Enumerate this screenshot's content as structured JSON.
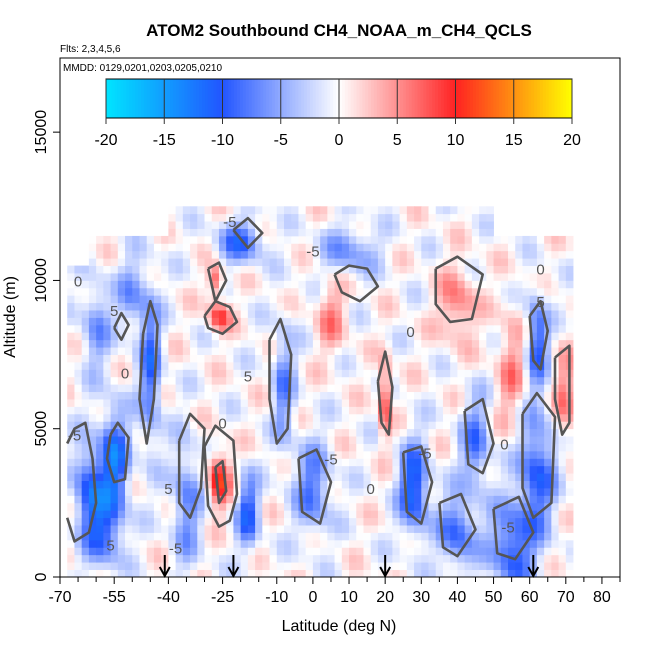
{
  "chart_data": {
    "type": "heatmap",
    "title": "ATOM2 Southbound CH4_NOAA_m_CH4_QCLS",
    "subtitle_flights": "Flts: 2,3,4,5,6",
    "subtitle_dates": "MMDD: 0129,0201,0203,0205,0210",
    "xlabel": "Latitude (deg N)",
    "ylabel": "Altitude (m)",
    "xlim": [
      -70,
      85
    ],
    "ylim": [
      0,
      17500
    ],
    "x_ticks_major": [
      -70,
      -55,
      -40,
      -25,
      -10,
      0,
      10,
      20,
      30,
      40,
      50,
      60,
      70,
      80
    ],
    "x_tick_labels": [
      "-70",
      "-55",
      "-40",
      "-25",
      "-10",
      "0",
      "10",
      "20",
      "30",
      "40",
      "50",
      "60",
      "70",
      "80"
    ],
    "x_ticks_minor": [
      -65,
      -60,
      -50,
      -45,
      -35,
      -30,
      -20,
      -15,
      -5,
      5,
      15,
      25,
      35,
      45,
      55,
      65,
      75,
      85
    ],
    "y_ticks": [
      0,
      5000,
      10000,
      15000
    ],
    "y_tick_labels": [
      "0",
      "5000",
      "10000",
      "15000"
    ],
    "colorbar": {
      "range": [
        -20,
        20
      ],
      "ticks": [
        -20,
        -15,
        -10,
        -5,
        0,
        5,
        10,
        15,
        20
      ],
      "tick_labels": [
        "-20",
        "-15",
        "-10",
        "-5",
        "0",
        "5",
        "10",
        "15",
        "20"
      ],
      "colors": [
        "#00e5ff",
        "#2255ff",
        "#ffffff",
        "#ff2222",
        "#ffff00"
      ]
    },
    "data_extent": {
      "lat": [
        -68,
        72
      ],
      "alt": [
        0,
        12500
      ]
    },
    "cell_size": {
      "lat": 2,
      "alt": 250
    },
    "anomalies": [
      {
        "lat": -62,
        "alt": 3000,
        "amp": -10,
        "wlat": 4,
        "walt": 1500
      },
      {
        "lat": -55,
        "alt": 3800,
        "amp": -12,
        "wlat": 4,
        "walt": 1800
      },
      {
        "lat": -58,
        "alt": 1500,
        "amp": -8,
        "wlat": 5,
        "walt": 1200
      },
      {
        "lat": -45,
        "alt": 7000,
        "amp": -9,
        "wlat": 3,
        "walt": 2500
      },
      {
        "lat": -50,
        "alt": 9500,
        "amp": -6,
        "wlat": 4,
        "walt": 1200
      },
      {
        "lat": -60,
        "alt": 8500,
        "amp": -6,
        "wlat": 4,
        "walt": 1500
      },
      {
        "lat": -35,
        "alt": 2500,
        "amp": -7,
        "wlat": 4,
        "walt": 2000
      },
      {
        "lat": -26,
        "alt": 3300,
        "amp": 11,
        "wlat": 3,
        "walt": 900
      },
      {
        "lat": -26,
        "alt": 8800,
        "amp": 9,
        "wlat": 3,
        "walt": 500
      },
      {
        "lat": -27,
        "alt": 10000,
        "amp": 8,
        "wlat": 2,
        "walt": 500
      },
      {
        "lat": -18,
        "alt": 2200,
        "amp": -10,
        "wlat": 3,
        "walt": 1200
      },
      {
        "lat": -20,
        "alt": 11300,
        "amp": -9,
        "wlat": 6,
        "walt": 700
      },
      {
        "lat": -8,
        "alt": 6500,
        "amp": -7,
        "wlat": 3,
        "walt": 2000
      },
      {
        "lat": 0,
        "alt": 3000,
        "amp": -8,
        "wlat": 5,
        "walt": 1500
      },
      {
        "lat": 10,
        "alt": 11000,
        "amp": -6,
        "wlat": 8,
        "walt": 800
      },
      {
        "lat": 5,
        "alt": 8800,
        "amp": 5,
        "wlat": 4,
        "walt": 1200
      },
      {
        "lat": 20,
        "alt": 6000,
        "amp": 11,
        "wlat": 1.5,
        "walt": 1200
      },
      {
        "lat": 28,
        "alt": 3000,
        "amp": -12,
        "wlat": 4,
        "walt": 1500
      },
      {
        "lat": 40,
        "alt": 1500,
        "amp": -9,
        "wlat": 5,
        "walt": 1200
      },
      {
        "lat": 40,
        "alt": 9200,
        "amp": 6,
        "wlat": 5,
        "walt": 1200
      },
      {
        "lat": 45,
        "alt": 4500,
        "amp": -8,
        "wlat": 4,
        "walt": 1500
      },
      {
        "lat": 55,
        "alt": 1000,
        "amp": -10,
        "wlat": 6,
        "walt": 1500
      },
      {
        "lat": 62,
        "alt": 3500,
        "amp": -10,
        "wlat": 5,
        "walt": 2000
      },
      {
        "lat": 62,
        "alt": 8000,
        "amp": -10,
        "wlat": 3,
        "walt": 1500
      },
      {
        "lat": 55,
        "alt": 7000,
        "amp": 5,
        "wlat": 4,
        "walt": 2000
      },
      {
        "lat": 70,
        "alt": 6000,
        "amp": 6,
        "wlat": 3,
        "walt": 1500
      }
    ],
    "contours": [
      [
        [
          -68,
          4500
        ],
        [
          -66,
          5000
        ],
        [
          -63,
          5200
        ],
        [
          -61,
          4000
        ],
        [
          -60,
          2500
        ],
        [
          -62,
          1500
        ],
        [
          -66,
          1200
        ],
        [
          -68,
          2000
        ]
      ],
      [
        [
          -55,
          8400
        ],
        [
          -53,
          8900
        ],
        [
          -51,
          8500
        ],
        [
          -53,
          8000
        ],
        [
          -55,
          8400
        ]
      ],
      [
        [
          -56,
          4800
        ],
        [
          -54,
          5200
        ],
        [
          -51,
          4700
        ],
        [
          -52,
          3300
        ],
        [
          -55,
          3200
        ],
        [
          -57,
          4000
        ],
        [
          -56,
          4800
        ]
      ],
      [
        [
          -47,
          8200
        ],
        [
          -45,
          9300
        ],
        [
          -43,
          8500
        ],
        [
          -44,
          6000
        ],
        [
          -46,
          4500
        ],
        [
          -48,
          6000
        ],
        [
          -47,
          8200
        ]
      ],
      [
        [
          -37,
          4600
        ],
        [
          -34,
          5500
        ],
        [
          -30,
          5000
        ],
        [
          -31,
          3000
        ],
        [
          -34,
          2000
        ],
        [
          -37,
          2500
        ],
        [
          -37,
          4600
        ]
      ],
      [
        [
          -30,
          4400
        ],
        [
          -27,
          5100
        ],
        [
          -22,
          4600
        ],
        [
          -21,
          2800
        ],
        [
          -23,
          1900
        ],
        [
          -26,
          1700
        ],
        [
          -29,
          2400
        ],
        [
          -30,
          4400
        ]
      ],
      [
        [
          -27,
          3700
        ],
        [
          -25,
          3900
        ],
        [
          -24,
          2900
        ],
        [
          -26,
          2500
        ],
        [
          -27,
          3700
        ]
      ],
      [
        [
          -30,
          8800
        ],
        [
          -27,
          9300
        ],
        [
          -23,
          9100
        ],
        [
          -21,
          8600
        ],
        [
          -25,
          8200
        ],
        [
          -29,
          8400
        ],
        [
          -30,
          8800
        ]
      ],
      [
        [
          -29,
          10400
        ],
        [
          -26,
          10600
        ],
        [
          -24,
          10000
        ],
        [
          -27,
          9300
        ],
        [
          -29,
          10400
        ]
      ],
      [
        [
          -22,
          11700
        ],
        [
          -18,
          12100
        ],
        [
          -14,
          11600
        ],
        [
          -18,
          11100
        ],
        [
          -22,
          11700
        ]
      ],
      [
        [
          -12,
          8000
        ],
        [
          -9,
          8700
        ],
        [
          -6,
          7500
        ],
        [
          -7,
          5000
        ],
        [
          -10,
          4500
        ],
        [
          -12,
          6000
        ],
        [
          -12,
          8000
        ]
      ],
      [
        [
          -4,
          4000
        ],
        [
          1,
          4300
        ],
        [
          5,
          3200
        ],
        [
          2,
          1800
        ],
        [
          -3,
          2200
        ],
        [
          -4,
          4000
        ]
      ],
      [
        [
          6,
          10200
        ],
        [
          10,
          10500
        ],
        [
          15,
          10400
        ],
        [
          18,
          9800
        ],
        [
          13,
          9300
        ],
        [
          8,
          9600
        ],
        [
          6,
          10200
        ]
      ],
      [
        [
          18,
          6600
        ],
        [
          20,
          7600
        ],
        [
          22,
          6400
        ],
        [
          21,
          4800
        ],
        [
          19,
          5200
        ],
        [
          18,
          6600
        ]
      ],
      [
        [
          25,
          4200
        ],
        [
          30,
          4400
        ],
        [
          33,
          3200
        ],
        [
          30,
          1800
        ],
        [
          26,
          2200
        ],
        [
          25,
          4200
        ]
      ],
      [
        [
          34,
          10400
        ],
        [
          40,
          10800
        ],
        [
          47,
          10200
        ],
        [
          44,
          8700
        ],
        [
          38,
          8600
        ],
        [
          34,
          9200
        ],
        [
          34,
          10400
        ]
      ],
      [
        [
          35,
          2500
        ],
        [
          41,
          2800
        ],
        [
          45,
          1600
        ],
        [
          40,
          700
        ],
        [
          36,
          1000
        ],
        [
          35,
          2500
        ]
      ],
      [
        [
          42,
          5600
        ],
        [
          47,
          6000
        ],
        [
          50,
          4500
        ],
        [
          47,
          3500
        ],
        [
          43,
          3800
        ],
        [
          42,
          5600
        ]
      ],
      [
        [
          50,
          2300
        ],
        [
          57,
          2700
        ],
        [
          61,
          1500
        ],
        [
          56,
          600
        ],
        [
          51,
          800
        ],
        [
          50,
          2300
        ]
      ],
      [
        [
          58,
          5500
        ],
        [
          62,
          6200
        ],
        [
          67,
          5400
        ],
        [
          66,
          2500
        ],
        [
          61,
          2000
        ],
        [
          58,
          3000
        ],
        [
          58,
          5500
        ]
      ],
      [
        [
          60,
          8800
        ],
        [
          63,
          9300
        ],
        [
          65,
          8300
        ],
        [
          63,
          7000
        ],
        [
          61,
          7300
        ],
        [
          60,
          8800
        ]
      ],
      [
        [
          67,
          7400
        ],
        [
          71,
          7800
        ],
        [
          71,
          5200
        ],
        [
          69,
          4800
        ],
        [
          67,
          6000
        ],
        [
          67,
          7400
        ]
      ]
    ],
    "contour_labels": [
      {
        "text": "0",
        "lat": -65,
        "alt": 9800
      },
      {
        "text": "5",
        "lat": -55,
        "alt": 8800
      },
      {
        "text": "0",
        "lat": -52,
        "alt": 6700
      },
      {
        "text": "-5",
        "lat": -66,
        "alt": 4600
      },
      {
        "text": "5",
        "lat": -56,
        "alt": 900
      },
      {
        "text": "-5",
        "lat": -38,
        "alt": 800
      },
      {
        "text": "5",
        "lat": -40,
        "alt": 2800
      },
      {
        "text": "0",
        "lat": -25,
        "alt": 5000
      },
      {
        "text": "5",
        "lat": -18,
        "alt": 6600
      },
      {
        "text": "-5",
        "lat": -23,
        "alt": 11800
      },
      {
        "text": "-5",
        "lat": 0,
        "alt": 10800
      },
      {
        "text": "-5",
        "lat": 5,
        "alt": 3800
      },
      {
        "text": "0",
        "lat": 16,
        "alt": 2800
      },
      {
        "text": "0",
        "lat": 27,
        "alt": 8100
      },
      {
        "text": "-5",
        "lat": 31,
        "alt": 4000
      },
      {
        "text": "-5",
        "lat": 54,
        "alt": 1500
      },
      {
        "text": "0",
        "lat": 53,
        "alt": 4300
      },
      {
        "text": "0",
        "lat": 63,
        "alt": 10200
      },
      {
        "text": "5",
        "lat": 63,
        "alt": 9100
      }
    ],
    "arrows_lat": [
      -41,
      -22,
      20,
      61
    ]
  }
}
